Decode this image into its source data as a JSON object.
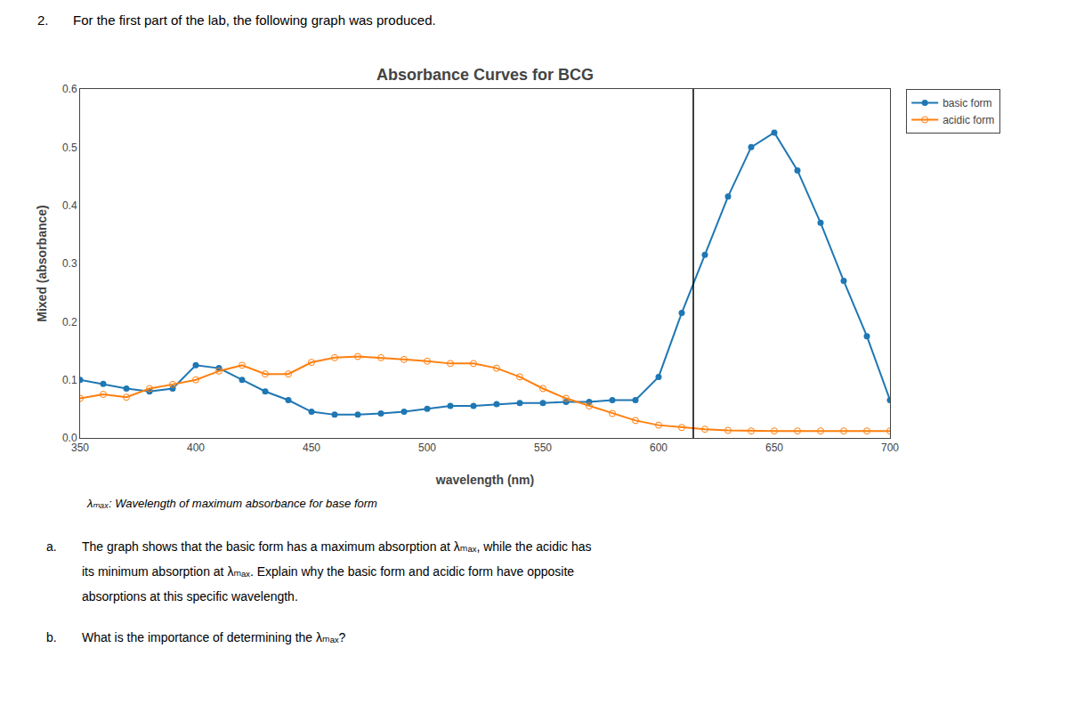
{
  "chart_data": {
    "type": "line",
    "title": "Absorbance Curves for BCG",
    "x_label": "wavelength (nm)",
    "y_label": "Mixed (absorbance)",
    "x": [
      350,
      360,
      370,
      380,
      390,
      400,
      410,
      420,
      430,
      440,
      450,
      460,
      470,
      480,
      490,
      500,
      510,
      520,
      530,
      540,
      550,
      560,
      570,
      580,
      590,
      600,
      610,
      620,
      630,
      640,
      650,
      660,
      670,
      680,
      690,
      700
    ],
    "series": [
      {
        "name": "basic form",
        "marker": "circle",
        "values": [
          0.1,
          0.093,
          0.085,
          0.08,
          0.085,
          0.125,
          0.12,
          0.1,
          0.08,
          0.065,
          0.045,
          0.04,
          0.04,
          0.042,
          0.045,
          0.05,
          0.055,
          0.055,
          0.058,
          0.06,
          0.06,
          0.062,
          0.062,
          0.065,
          0.065,
          0.105,
          0.215,
          0.315,
          0.415,
          0.5,
          0.525,
          0.46,
          0.37,
          0.27,
          0.175,
          0.065
        ]
      },
      {
        "name": "acidic form",
        "marker": "circle-open",
        "values": [
          0.068,
          0.075,
          0.07,
          0.085,
          0.092,
          0.1,
          0.115,
          0.125,
          0.11,
          0.11,
          0.13,
          0.138,
          0.14,
          0.138,
          0.135,
          0.132,
          0.128,
          0.128,
          0.12,
          0.105,
          0.085,
          0.068,
          0.055,
          0.042,
          0.03,
          0.022,
          0.018,
          0.015,
          0.013,
          0.012,
          0.012,
          0.012,
          0.012,
          0.012,
          0.012,
          0.012
        ]
      }
    ],
    "vlines": [
      615
    ],
    "xlim": [
      350,
      700
    ],
    "ylim": [
      0,
      0.6
    ],
    "xticks": [
      350,
      400,
      450,
      500,
      550,
      600,
      650,
      700
    ],
    "yticks": [
      {
        "value": 0,
        "label": "0.0"
      },
      0.1,
      0.2,
      0.3,
      0.4,
      0.5,
      0.6
    ],
    "grid": false,
    "legend": "upper right",
    "annotations": [
      "2.",
      "For the first part of the lab, the following graph was produced.",
      "λₘₐₓ: Wavelength of maximum absorbance for base form",
      "a.",
      "The graph shows that the basic form has a maximum absorption at λₘₐₓ, while the acidic has",
      "its minimum absorption at λₘₐₓ. Explain why the basic form and acidic form have opposite",
      "absorptions at this specific wavelength.",
      "b.",
      "What is the importance of determining the λₘₐₓ?"
    ]
  }
}
